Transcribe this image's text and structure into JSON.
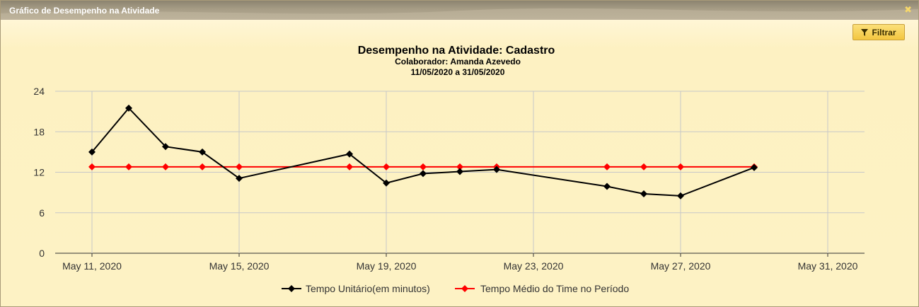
{
  "window": {
    "title": "Gráfico de Desempenho na Atividade",
    "close_icon": "close-icon"
  },
  "toolbar": {
    "filter_label": "Filtrar",
    "filter_icon": "funnel-icon"
  },
  "chart_data": {
    "type": "line",
    "title": "Desempenho na Atividade: Cadastro",
    "subtitle_lines": [
      "Colaborador: Amanda Azevedo",
      "11/05/2020 a 31/05/2020"
    ],
    "xlabel": "",
    "ylabel": "",
    "x_ticks": [
      "May 11, 2020",
      "May 15, 2020",
      "May 19, 2020",
      "May 23, 2020",
      "May 27, 2020",
      "May 31, 2020"
    ],
    "y_ticks": [
      0,
      6,
      12,
      18,
      24
    ],
    "ylim": [
      0,
      24
    ],
    "xlim": [
      "2020-05-10",
      "2020-06-01"
    ],
    "grid": true,
    "legend_position": "bottom",
    "series": [
      {
        "name": "Tempo Unitário(em minutos)",
        "color": "#000000",
        "marker": "diamond",
        "points": [
          {
            "x": "2020-05-11",
            "y": 15.0
          },
          {
            "x": "2020-05-12",
            "y": 21.5
          },
          {
            "x": "2020-05-13",
            "y": 15.8
          },
          {
            "x": "2020-05-14",
            "y": 15.0
          },
          {
            "x": "2020-05-15",
            "y": 11.1
          },
          {
            "x": "2020-05-18",
            "y": 14.7
          },
          {
            "x": "2020-05-19",
            "y": 10.4
          },
          {
            "x": "2020-05-20",
            "y": 11.8
          },
          {
            "x": "2020-05-21",
            "y": 12.1
          },
          {
            "x": "2020-05-22",
            "y": 12.4
          },
          {
            "x": "2020-05-25",
            "y": 9.9
          },
          {
            "x": "2020-05-26",
            "y": 8.8
          },
          {
            "x": "2020-05-27",
            "y": 8.5
          },
          {
            "x": "2020-05-29",
            "y": 12.7
          }
        ]
      },
      {
        "name": "Tempo Médio do Time no Período",
        "color": "#ff0000",
        "marker": "diamond",
        "points": [
          {
            "x": "2020-05-11",
            "y": 12.8
          },
          {
            "x": "2020-05-12",
            "y": 12.8
          },
          {
            "x": "2020-05-13",
            "y": 12.8
          },
          {
            "x": "2020-05-14",
            "y": 12.8
          },
          {
            "x": "2020-05-15",
            "y": 12.8
          },
          {
            "x": "2020-05-18",
            "y": 12.8
          },
          {
            "x": "2020-05-19",
            "y": 12.8
          },
          {
            "x": "2020-05-20",
            "y": 12.8
          },
          {
            "x": "2020-05-21",
            "y": 12.8
          },
          {
            "x": "2020-05-22",
            "y": 12.8
          },
          {
            "x": "2020-05-25",
            "y": 12.8
          },
          {
            "x": "2020-05-26",
            "y": 12.8
          },
          {
            "x": "2020-05-27",
            "y": 12.8
          },
          {
            "x": "2020-05-29",
            "y": 12.8
          }
        ]
      }
    ]
  }
}
